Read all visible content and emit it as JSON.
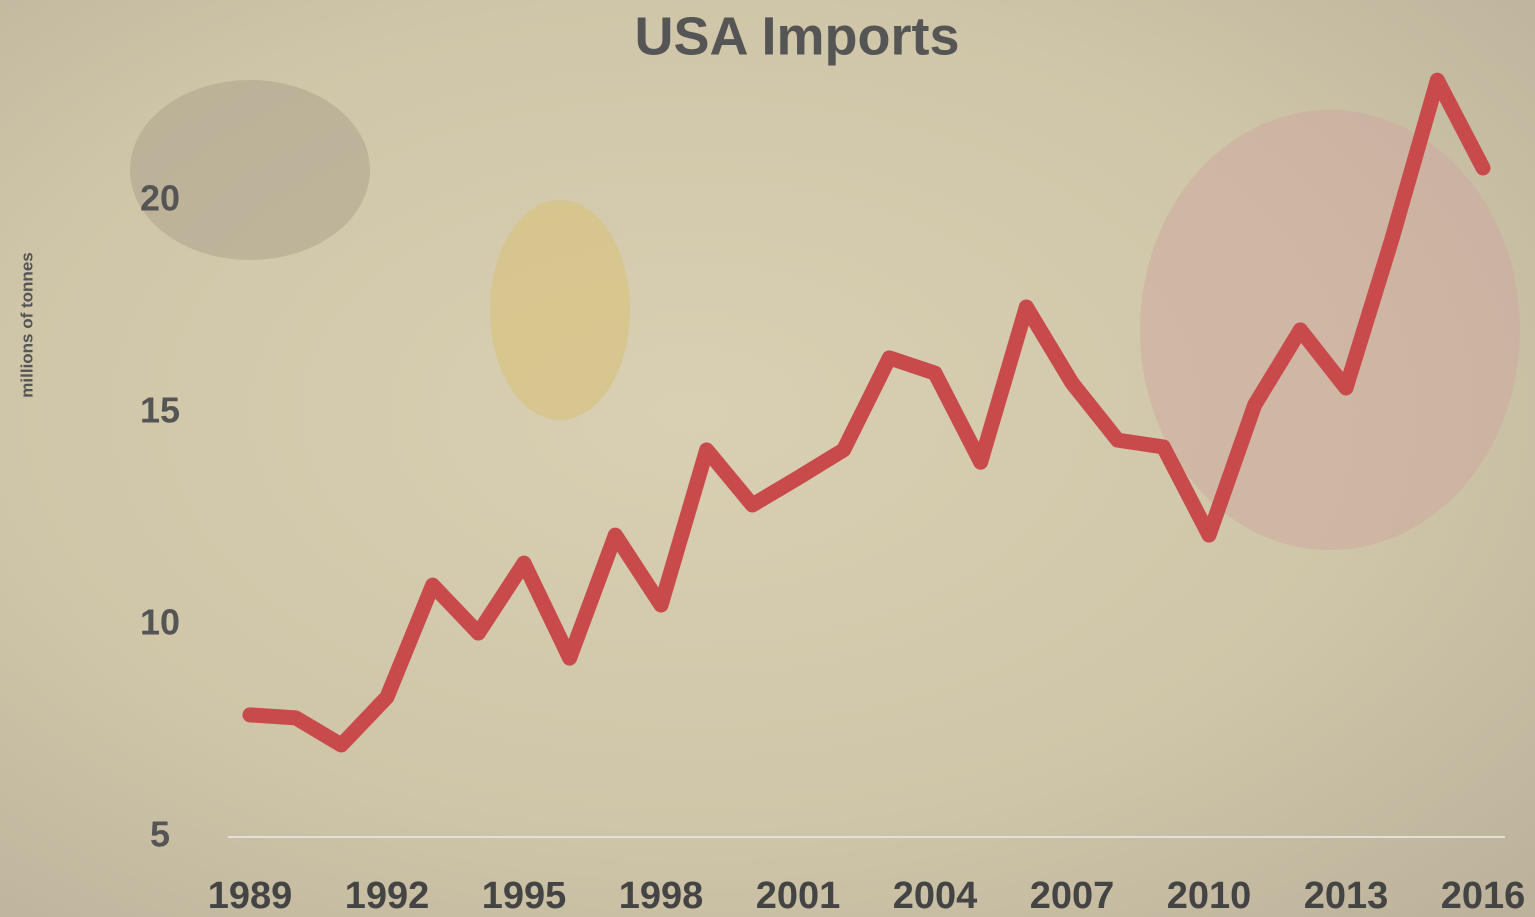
{
  "chart_data": {
    "type": "line",
    "title": "USA Imports",
    "y_label": "millions of tonnes",
    "x": [
      1989,
      1990,
      1991,
      1992,
      1993,
      1994,
      1995,
      1996,
      1997,
      1998,
      1999,
      2000,
      2001,
      2002,
      2003,
      2004,
      2005,
      2006,
      2007,
      2008,
      2009,
      2010,
      2011,
      2012,
      2013,
      2014,
      2015,
      2016
    ],
    "series": [
      {
        "name": "USA Imports",
        "color": "#c94a4a",
        "values": [
          7.88,
          7.81,
          7.17,
          8.3,
          10.94,
          9.81,
          11.46,
          9.22,
          12.12,
          10.47,
          14.13,
          12.83,
          13.47,
          14.13,
          16.3,
          15.94,
          13.84,
          17.5,
          15.71,
          14.36,
          14.2,
          12.12,
          15.19,
          16.96,
          15.59,
          19.08,
          22.85,
          20.78
        ]
      }
    ],
    "xlim": [
      1989,
      2016
    ],
    "xticks": [
      1989,
      1992,
      1995,
      1998,
      2001,
      2004,
      2007,
      2010,
      2013,
      2016
    ],
    "ylim": [
      5,
      25
    ],
    "yticks": [
      5,
      10,
      15,
      20
    ],
    "grid": false
  }
}
